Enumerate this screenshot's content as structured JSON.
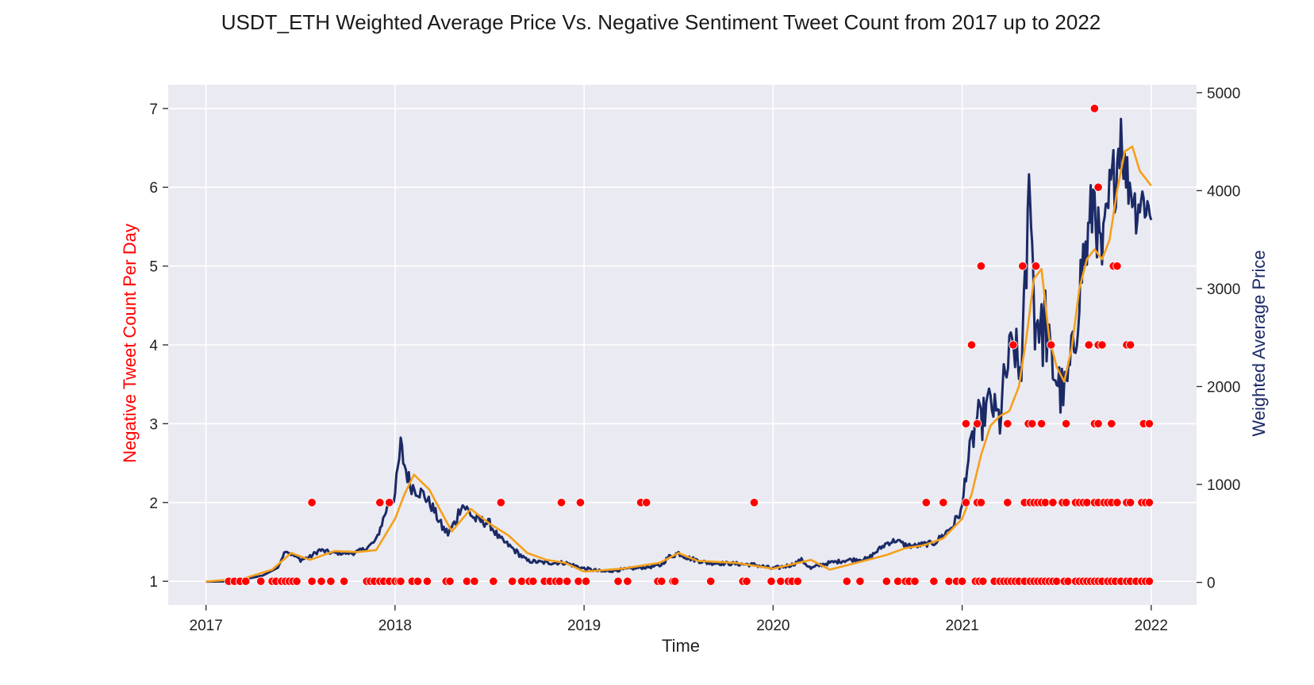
{
  "chart_data": {
    "type": "line",
    "title": "USDT_ETH Weighted Average Price Vs. Negative Sentiment Tweet Count from 2017 up to 2022",
    "xlabel": "Time",
    "ylabel_left": "Negative Tweet Count Per Day",
    "ylabel_right": "Weighted Average Price",
    "x_ticks": [
      "2017",
      "2018",
      "2019",
      "2020",
      "2021",
      "2022"
    ],
    "y_left_ticks": [
      "1",
      "2",
      "3",
      "4",
      "5",
      "6",
      "7"
    ],
    "y_right_ticks": [
      "0",
      "1000",
      "2000",
      "3000",
      "4000",
      "5000"
    ],
    "ylim_left": [
      0.7,
      7.3
    ],
    "ylim_right": [
      -230,
      5080
    ],
    "xlim": [
      2016.8,
      2022.24
    ],
    "grid": true,
    "colors": {
      "background": "#eaeaf2",
      "price": "#1b2a66",
      "moving_average": "#f5a01a",
      "tweets": "#ff0000",
      "left_label": "#ff0000",
      "right_label": "#1b2a66"
    },
    "series": [
      {
        "type": "line",
        "role": "price",
        "x": [
          2017.0,
          2017.1,
          2017.2,
          2017.3,
          2017.38,
          2017.42,
          2017.45,
          2017.5,
          2017.55,
          2017.6,
          2017.67,
          2017.72,
          2017.78,
          2017.85,
          2017.9,
          2017.93,
          2017.96,
          2018.0,
          2018.03,
          2018.05,
          2018.08,
          2018.11,
          2018.15,
          2018.2,
          2018.25,
          2018.28,
          2018.32,
          2018.35,
          2018.38,
          2018.42,
          2018.5,
          2018.55,
          2018.6,
          2018.65,
          2018.7,
          2018.8,
          2018.9,
          2018.95,
          2019.0,
          2019.1,
          2019.2,
          2019.3,
          2019.4,
          2019.45,
          2019.5,
          2019.55,
          2019.65,
          2019.8,
          2019.9,
          2020.0,
          2020.1,
          2020.15,
          2020.2,
          2020.25,
          2020.3,
          2020.4,
          2020.5,
          2020.55,
          2020.6,
          2020.65,
          2020.7,
          2020.75,
          2020.8,
          2020.85,
          2020.9,
          2020.95,
          2021.0,
          2021.02,
          2021.04,
          2021.06,
          2021.08,
          2021.1,
          2021.12,
          2021.15,
          2021.18,
          2021.2,
          2021.22,
          2021.25,
          2021.28,
          2021.3,
          2021.32,
          2021.34,
          2021.36,
          2021.37,
          2021.38,
          2021.39,
          2021.4,
          2021.42,
          2021.44,
          2021.46,
          2021.5,
          2021.52,
          2021.55,
          2021.57,
          2021.6,
          2021.62,
          2021.64,
          2021.66,
          2021.68,
          2021.7,
          2021.72,
          2021.74,
          2021.76,
          2021.78,
          2021.8,
          2021.82,
          2021.84,
          2021.86,
          2021.88,
          2021.9,
          2021.92,
          2021.94,
          2021.96,
          2021.98,
          2022.0
        ],
        "y": [
          8,
          10,
          30,
          70,
          150,
          330,
          290,
          230,
          260,
          330,
          300,
          300,
          300,
          350,
          430,
          600,
          780,
          900,
          1380,
          1200,
          1000,
          950,
          900,
          760,
          560,
          500,
          620,
          800,
          750,
          650,
          600,
          450,
          380,
          300,
          220,
          200,
          200,
          170,
          140,
          110,
          130,
          150,
          170,
          260,
          300,
          250,
          200,
          190,
          180,
          140,
          180,
          230,
          140,
          180,
          200,
          230,
          240,
          320,
          400,
          430,
          380,
          370,
          390,
          400,
          480,
          580,
          750,
          1150,
          1300,
          1500,
          1700,
          1600,
          1750,
          1850,
          1700,
          1650,
          2000,
          2300,
          2400,
          2100,
          2400,
          3200,
          4300,
          3400,
          2900,
          2600,
          2800,
          2500,
          2700,
          2300,
          2100,
          1950,
          1950,
          2200,
          2500,
          3000,
          3300,
          3400,
          3700,
          4000,
          3500,
          3300,
          3600,
          3900,
          4100,
          4300,
          4700,
          4200,
          4100,
          4000,
          3800,
          3900,
          3900,
          3850,
          3700
        ],
        "noise": [
          0,
          0,
          0,
          0,
          0,
          20,
          20,
          20,
          20,
          25,
          20,
          20,
          20,
          20,
          30,
          40,
          60,
          80,
          150,
          120,
          90,
          80,
          70,
          60,
          50,
          50,
          60,
          70,
          60,
          60,
          50,
          40,
          30,
          30,
          20,
          20,
          20,
          20,
          20,
          15,
          15,
          15,
          20,
          25,
          30,
          25,
          20,
          20,
          20,
          20,
          20,
          20,
          20,
          20,
          20,
          20,
          20,
          25,
          30,
          30,
          30,
          30,
          30,
          30,
          40,
          50,
          60,
          120,
          150,
          180,
          200,
          200,
          200,
          200,
          200,
          220,
          250,
          280,
          300,
          300,
          350,
          400,
          500,
          500,
          450,
          450,
          450,
          400,
          400,
          380,
          300,
          280,
          250,
          250,
          300,
          320,
          350,
          350,
          400,
          400,
          350,
          300,
          350,
          400,
          400,
          400,
          350,
          300,
          300,
          250,
          250,
          250,
          250,
          230,
          200
        ]
      },
      {
        "type": "line",
        "role": "moving-average",
        "x": [
          2017.0,
          2017.2,
          2017.35,
          2017.45,
          2017.55,
          2017.68,
          2017.8,
          2017.9,
          2018.0,
          2018.05,
          2018.1,
          2018.18,
          2018.25,
          2018.3,
          2018.4,
          2018.5,
          2018.6,
          2018.7,
          2018.8,
          2018.9,
          2019.0,
          2019.2,
          2019.4,
          2019.5,
          2019.6,
          2019.8,
          2020.0,
          2020.2,
          2020.3,
          2020.5,
          2020.6,
          2020.7,
          2020.8,
          2020.9,
          2021.0,
          2021.05,
          2021.1,
          2021.15,
          2021.2,
          2021.25,
          2021.3,
          2021.34,
          2021.38,
          2021.42,
          2021.46,
          2021.5,
          2021.54,
          2021.58,
          2021.62,
          2021.66,
          2021.7,
          2021.74,
          2021.78,
          2021.82,
          2021.86,
          2021.9,
          2021.94,
          2021.98,
          2022.0
        ],
        "y": [
          8,
          40,
          130,
          300,
          230,
          320,
          310,
          330,
          650,
          900,
          1100,
          950,
          700,
          520,
          750,
          600,
          480,
          300,
          230,
          200,
          110,
          140,
          200,
          300,
          220,
          200,
          140,
          230,
          130,
          230,
          280,
          350,
          380,
          450,
          650,
          900,
          1300,
          1600,
          1700,
          1750,
          2000,
          2500,
          3100,
          3200,
          2500,
          2200,
          2050,
          2400,
          3000,
          3300,
          3400,
          3300,
          3500,
          4000,
          4400,
          4450,
          4200,
          4100,
          4050
        ]
      },
      {
        "type": "scatter",
        "role": "negative-tweets",
        "x": [
          2017.12,
          2017.15,
          2017.18,
          2017.21,
          2017.29,
          2017.35,
          2017.37,
          2017.4,
          2017.42,
          2017.44,
          2017.46,
          2017.48,
          2017.56,
          2017.61,
          2017.66,
          2017.73,
          2017.85,
          2017.87,
          2017.89,
          2017.92,
          2017.94,
          2017.97,
          2018.0,
          2018.02,
          2018.03,
          2018.09,
          2018.12,
          2018.17,
          2018.27,
          2018.29,
          2018.38,
          2018.42,
          2018.52,
          2018.62,
          2018.67,
          2018.71,
          2018.73,
          2018.79,
          2018.82,
          2018.85,
          2018.87,
          2018.91,
          2018.97,
          2019.01,
          2019.18,
          2019.23,
          2019.39,
          2019.41,
          2019.47,
          2019.48,
          2019.67,
          2019.84,
          2019.86,
          2019.99,
          2020.04,
          2020.08,
          2020.1,
          2020.13,
          2020.39,
          2020.46,
          2020.6,
          2020.66,
          2020.7,
          2020.72,
          2020.75,
          2020.85,
          2020.93,
          2020.97,
          2021.0,
          2021.07,
          2021.09,
          2021.11,
          2021.17,
          2021.2,
          2021.22,
          2021.24,
          2021.26,
          2021.28,
          2021.3,
          2021.33,
          2021.36,
          2021.38,
          2021.4,
          2021.42,
          2021.44,
          2021.46,
          2021.48,
          2021.5,
          2021.54,
          2021.56,
          2021.6,
          2021.62,
          2021.64,
          2021.66,
          2021.68,
          2021.7,
          2021.72,
          2021.74,
          2021.77,
          2021.79,
          2021.81,
          2021.84,
          2021.87,
          2021.89,
          2021.92,
          2021.95,
          2021.97,
          2021.99,
          2017.56,
          2017.92,
          2017.97,
          2018.56,
          2018.88,
          2018.98,
          2019.3,
          2019.33,
          2019.9,
          2020.81,
          2020.9,
          2021.02,
          2021.08,
          2021.1,
          2021.24,
          2021.33,
          2021.36,
          2021.38,
          2021.4,
          2021.42,
          2021.44,
          2021.48,
          2021.53,
          2021.55,
          2021.6,
          2021.62,
          2021.64,
          2021.66,
          2021.7,
          2021.72,
          2021.75,
          2021.77,
          2021.79,
          2021.82,
          2021.87,
          2021.89,
          2021.95,
          2021.97,
          2021.99,
          2021.02,
          2021.08,
          2021.24,
          2021.35,
          2021.37,
          2021.42,
          2021.55,
          2021.7,
          2021.72,
          2021.79,
          2021.96,
          2021.99,
          2021.05,
          2021.27,
          2021.47,
          2021.67,
          2021.72,
          2021.74,
          2021.87,
          2021.89,
          2021.1,
          2021.32,
          2021.39,
          2021.8,
          2021.82,
          2021.72,
          2021.7
        ],
        "y": [
          1,
          1,
          1,
          1,
          1,
          1,
          1,
          1,
          1,
          1,
          1,
          1,
          1,
          1,
          1,
          1,
          1,
          1,
          1,
          1,
          1,
          1,
          1,
          1,
          1,
          1,
          1,
          1,
          1,
          1,
          1,
          1,
          1,
          1,
          1,
          1,
          1,
          1,
          1,
          1,
          1,
          1,
          1,
          1,
          1,
          1,
          1,
          1,
          1,
          1,
          1,
          1,
          1,
          1,
          1,
          1,
          1,
          1,
          1,
          1,
          1,
          1,
          1,
          1,
          1,
          1,
          1,
          1,
          1,
          1,
          1,
          1,
          1,
          1,
          1,
          1,
          1,
          1,
          1,
          1,
          1,
          1,
          1,
          1,
          1,
          1,
          1,
          1,
          1,
          1,
          1,
          1,
          1,
          1,
          1,
          1,
          1,
          1,
          1,
          1,
          1,
          1,
          1,
          1,
          1,
          1,
          1,
          1,
          2,
          2,
          2,
          2,
          2,
          2,
          2,
          2,
          2,
          2,
          2,
          2,
          2,
          2,
          2,
          2,
          2,
          2,
          2,
          2,
          2,
          2,
          2,
          2,
          2,
          2,
          2,
          2,
          2,
          2,
          2,
          2,
          2,
          2,
          2,
          2,
          2,
          2,
          2,
          3,
          3,
          3,
          3,
          3,
          3,
          3,
          3,
          3,
          3,
          3,
          3,
          4,
          4,
          4,
          4,
          4,
          4,
          4,
          4,
          5,
          5,
          5,
          5,
          5,
          6,
          7
        ]
      }
    ]
  }
}
